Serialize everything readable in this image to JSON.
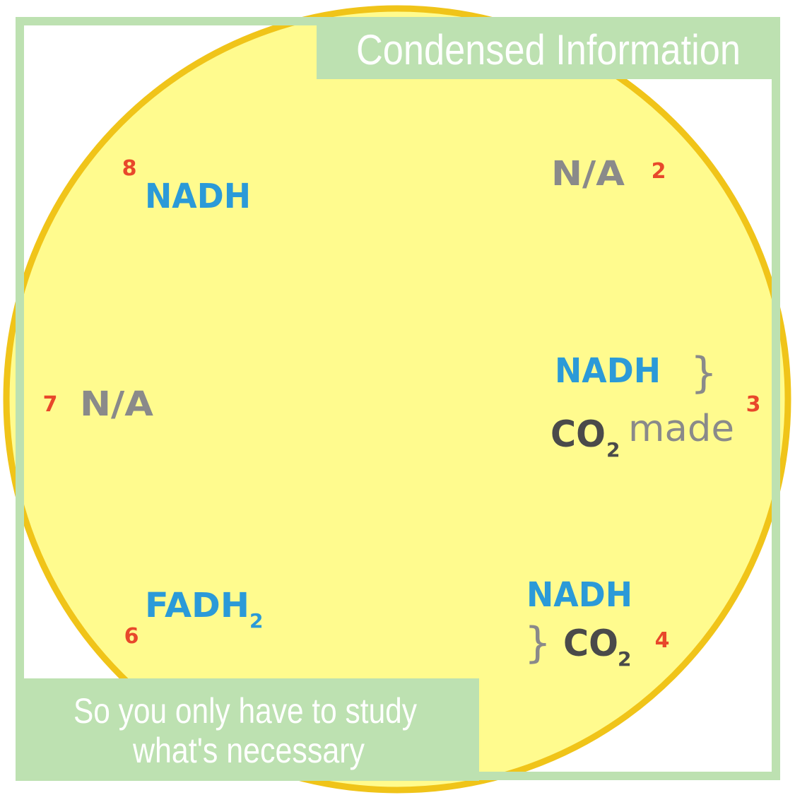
{
  "header": {
    "title": "Condensed Information"
  },
  "footer": {
    "line1": "So you only have to study",
    "line2": "what's necessary"
  },
  "cycle": {
    "step8": {
      "number": "8",
      "product": "NADH"
    },
    "step2": {
      "number": "2",
      "product": "N/A"
    },
    "step7": {
      "number": "7",
      "product": "N/A"
    },
    "step3": {
      "number": "3",
      "product": "NADH",
      "co2": "CO",
      "co2_sub": "2",
      "made": "made"
    },
    "step6": {
      "number": "6",
      "product": "FADH",
      "product_sub": "2"
    },
    "step4": {
      "number": "4",
      "product": "NADH",
      "co2": "CO",
      "co2_sub": "2"
    }
  },
  "colors": {
    "frame_green": "#bde1b1",
    "circle_fill": "#fffb8e",
    "circle_stroke": "#f0c419",
    "nadh_blue": "#2b9ad8",
    "na_gray": "#8a8a8a",
    "co2_dark": "#4a4a4a",
    "number_red": "#e8482b"
  }
}
